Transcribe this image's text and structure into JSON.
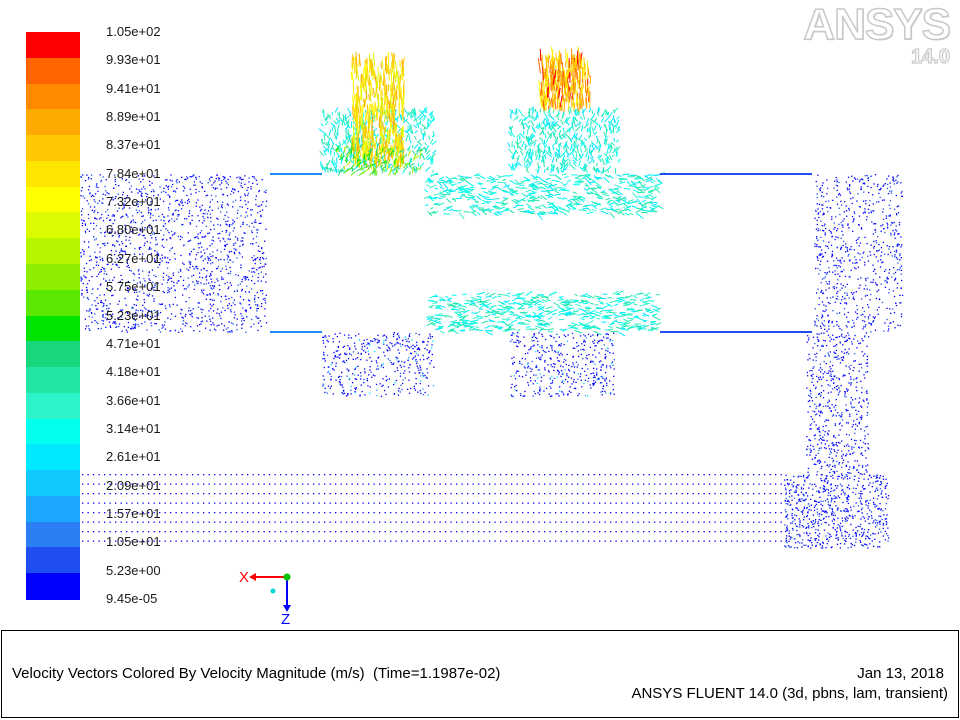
{
  "colorbar": {
    "colors": [
      "#0000ff",
      "#1f4ff0",
      "#2a7ff5",
      "#1da8ff",
      "#12c8ff",
      "#00e8ff",
      "#00ffef",
      "#2ef2c8",
      "#22e6a6",
      "#18d67c",
      "#00e400",
      "#5ae800",
      "#8fee00",
      "#b6f400",
      "#dcfa00",
      "#ffff00",
      "#ffe600",
      "#ffc800",
      "#ffaa00",
      "#ff8a00",
      "#ff6400",
      "#ff0000"
    ],
    "labels": [
      "1.05e+02",
      "9.93e+01",
      "9.41e+01",
      "8.89e+01",
      "8.37e+01",
      "7.84e+01",
      "7.32e+01",
      "6.80e+01",
      "6.27e+01",
      "5.75e+01",
      "5.23e+01",
      "4.71e+01",
      "4.18e+01",
      "3.66e+01",
      "3.14e+01",
      "2.61e+01",
      "2.09e+01",
      "1.57e+01",
      "1.05e+01",
      "5.23e+00",
      "9.45e-05"
    ]
  },
  "logo": {
    "brand_an": "AN",
    "brand_sys": "SYS",
    "version": "14.0"
  },
  "triad": {
    "x_label": "X",
    "z_label": "Z"
  },
  "info": {
    "caption": "Velocity Vectors Colored By Velocity Magnitude (m/s)  (Time=1.1987e-02)",
    "date": "Jan 13, 2018",
    "solver": "ANSYS FLUENT 14.0 (3d, pbns, lam, transient)"
  }
}
